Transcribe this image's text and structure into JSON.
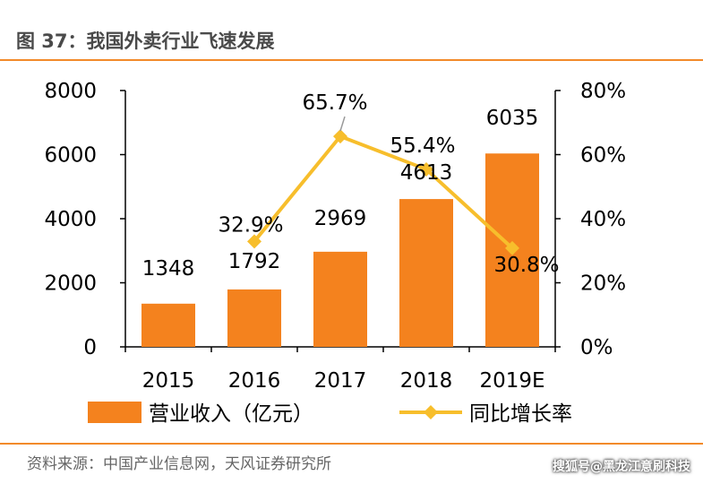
{
  "header": {
    "title": "图 37：我国外卖行业飞速发展"
  },
  "footer": {
    "source": "资料来源：中国产业信息网，天风证券研究所",
    "watermark": "搜狐号@黑龙江意刷科技"
  },
  "colors": {
    "bar": "#f4821e",
    "line": "#f7be2c",
    "accent": "#f28a2a"
  },
  "chart_data": {
    "type": "bar",
    "title": "",
    "categories": [
      "2015",
      "2016",
      "2017",
      "2018",
      "2019E"
    ],
    "series": [
      {
        "name": "营业收入（亿元）",
        "type": "bar",
        "axis": "left",
        "values": [
          1348,
          1792,
          2969,
          4613,
          6035
        ],
        "labels": [
          "1348",
          "1792",
          "2969",
          "4613",
          "6035"
        ]
      },
      {
        "name": "同比增长率",
        "type": "line",
        "axis": "right",
        "values": [
          null,
          32.9,
          65.7,
          55.4,
          30.8
        ],
        "labels": [
          "",
          "32.9%",
          "65.7%",
          "55.4%",
          "30.8%"
        ]
      }
    ],
    "y_left": {
      "range": [
        0,
        8000
      ],
      "ticks": [
        "0",
        "2000",
        "4000",
        "6000",
        "8000"
      ]
    },
    "y_right": {
      "range": [
        0,
        80
      ],
      "ticks": [
        "0%",
        "20%",
        "40%",
        "60%",
        "80%"
      ]
    },
    "grid": false,
    "legend": "bottom"
  }
}
